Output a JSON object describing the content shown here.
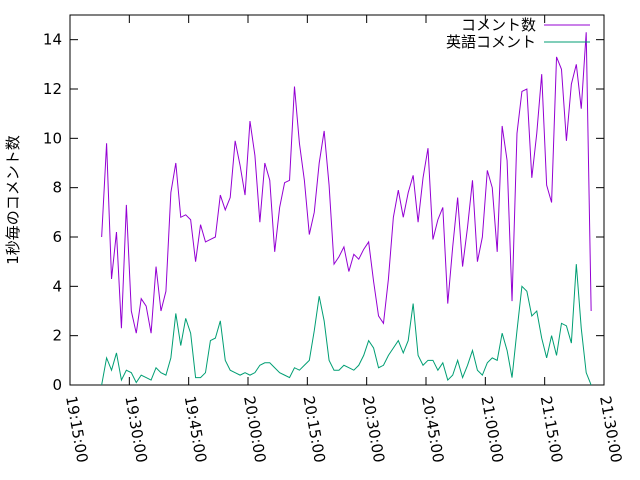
{
  "chart_data": {
    "type": "line",
    "ylabel": "1秒毎のコメント数",
    "x": [
      "19:23:00",
      "19:24:15",
      "19:25:30",
      "19:26:45",
      "19:28:00",
      "19:29:15",
      "19:30:30",
      "19:31:45",
      "19:33:00",
      "19:34:15",
      "19:35:30",
      "19:36:45",
      "19:38:00",
      "19:39:15",
      "19:40:30",
      "19:41:45",
      "19:43:00",
      "19:44:15",
      "19:45:30",
      "19:46:45",
      "19:48:00",
      "19:49:15",
      "19:50:30",
      "19:51:45",
      "19:53:00",
      "19:54:15",
      "19:55:30",
      "19:56:45",
      "19:58:00",
      "19:59:15",
      "20:00:30",
      "20:01:45",
      "20:03:00",
      "20:04:15",
      "20:05:30",
      "20:06:45",
      "20:08:00",
      "20:09:15",
      "20:10:30",
      "20:11:45",
      "20:13:00",
      "20:14:15",
      "20:15:30",
      "20:16:45",
      "20:18:00",
      "20:19:15",
      "20:20:30",
      "20:21:45",
      "20:23:00",
      "20:24:15",
      "20:25:30",
      "20:26:45",
      "20:28:00",
      "20:29:15",
      "20:30:30",
      "20:31:45",
      "20:33:00",
      "20:34:15",
      "20:35:30",
      "20:36:45",
      "20:38:00",
      "20:39:15",
      "20:40:30",
      "20:41:45",
      "20:43:00",
      "20:44:15",
      "20:45:30",
      "20:46:45",
      "20:48:00",
      "20:49:15",
      "20:50:30",
      "20:51:45",
      "20:53:00",
      "20:54:15",
      "20:55:30",
      "20:56:45",
      "20:58:00",
      "20:59:15",
      "21:00:30",
      "21:01:45",
      "21:03:00",
      "21:04:15",
      "21:05:30",
      "21:06:45",
      "21:08:00",
      "21:09:15",
      "21:10:30",
      "21:11:45",
      "21:13:00",
      "21:14:15",
      "21:15:30",
      "21:16:45",
      "21:18:00",
      "21:19:15",
      "21:20:30",
      "21:21:45",
      "21:23:00",
      "21:24:15",
      "21:25:30",
      "21:26:45"
    ],
    "series": [
      {
        "name": "コメント数",
        "color": "#9400d3",
        "values": [
          6,
          9.8,
          4.3,
          6.2,
          2.3,
          7.3,
          3,
          2.1,
          3.5,
          3.2,
          2.1,
          4.8,
          3,
          3.8,
          7.8,
          9,
          6.8,
          6.9,
          6.7,
          5,
          6.5,
          5.8,
          5.9,
          6,
          7.7,
          7.1,
          7.6,
          9.9,
          8.9,
          7.7,
          10.7,
          9.3,
          6.6,
          9,
          8.3,
          5.4,
          7.2,
          8.2,
          8.3,
          12.1,
          9.8,
          8.3,
          6.1,
          7,
          9,
          10.3,
          8.1,
          4.9,
          5.2,
          5.6,
          4.6,
          5.3,
          5.1,
          5.5,
          5.8,
          4.2,
          2.8,
          2.5,
          4.3,
          6.8,
          7.9,
          6.8,
          7.8,
          8.5,
          6.6,
          8.4,
          9.6,
          5.9,
          6.7,
          7.2,
          3.3,
          5.6,
          7.6,
          4.8,
          6.4,
          8.3,
          5,
          6,
          8.7,
          8,
          5.4,
          10.5,
          9.1,
          3.4,
          10.2,
          11.9,
          12,
          8.4,
          10.2,
          12.6,
          8.1,
          7.4,
          13.3,
          12.8,
          9.9,
          12.2,
          13,
          11.2,
          14.3,
          3
        ]
      },
      {
        "name": "英語コメント",
        "color": "#009e73",
        "values": [
          0,
          1.1,
          0.6,
          1.3,
          0.2,
          0.6,
          0.5,
          0.1,
          0.4,
          0.3,
          0.2,
          0.7,
          0.5,
          0.4,
          1.1,
          2.9,
          1.6,
          2.7,
          2.1,
          0.3,
          0.3,
          0.5,
          1.8,
          1.9,
          2.6,
          1.0,
          0.6,
          0.5,
          0.4,
          0.5,
          0.4,
          0.5,
          0.8,
          0.9,
          0.9,
          0.7,
          0.5,
          0.4,
          0.3,
          0.7,
          0.6,
          0.8,
          1.0,
          2.2,
          3.6,
          2.6,
          1.0,
          0.6,
          0.6,
          0.8,
          0.7,
          0.6,
          0.8,
          1.2,
          1.8,
          1.5,
          0.7,
          0.8,
          1.2,
          1.5,
          1.8,
          1.3,
          1.8,
          3.3,
          1.2,
          0.8,
          1.0,
          1.0,
          0.6,
          0.9,
          0.2,
          0.4,
          1.0,
          0.3,
          0.8,
          1.4,
          0.6,
          0.4,
          0.9,
          1.1,
          1.0,
          2.1,
          1.4,
          0.3,
          2.2,
          4.0,
          3.8,
          2.8,
          3.0,
          1.9,
          1.1,
          2.0,
          1.2,
          2.5,
          2.4,
          1.7,
          4.9,
          2.3,
          0.5,
          0
        ]
      }
    ],
    "xlim": [
      "19:15:00",
      "21:30:00"
    ],
    "xticks": [
      "19:15:00",
      "19:30:00",
      "19:45:00",
      "20:00:00",
      "20:15:00",
      "20:30:00",
      "20:45:00",
      "21:00:00",
      "21:15:00",
      "21:30:00"
    ],
    "ylim": [
      0,
      15
    ],
    "yticks": [
      0,
      2,
      4,
      6,
      8,
      10,
      12,
      14
    ],
    "legend": "top-right"
  }
}
